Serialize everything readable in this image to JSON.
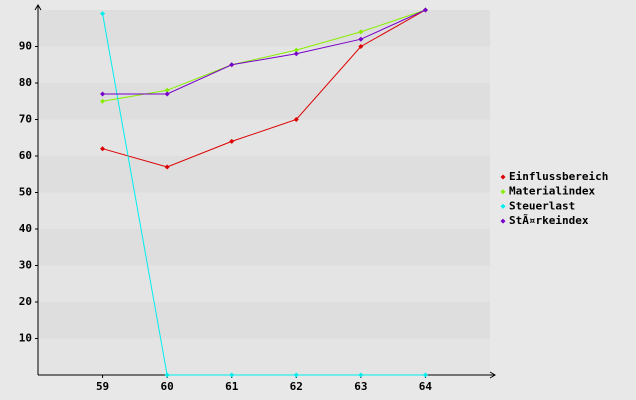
{
  "chart_data": {
    "type": "line",
    "x": [
      59,
      60,
      61,
      62,
      63,
      64
    ],
    "xlim": [
      58,
      65
    ],
    "xticks": [
      59,
      60,
      61,
      62,
      63,
      64
    ],
    "ylim": [
      0,
      100
    ],
    "yticks": [
      10,
      20,
      30,
      40,
      50,
      60,
      70,
      80,
      90
    ],
    "legend": "right",
    "series": [
      {
        "name": "Einflussbereich",
        "color": "#dd0000",
        "values": [
          62,
          57,
          64,
          70,
          90,
          100
        ]
      },
      {
        "name": "Materialindex",
        "color": "#88ee00",
        "values": [
          75,
          78,
          85,
          89,
          94,
          100
        ]
      },
      {
        "name": "Steuerlast",
        "color": "#00eeee",
        "values": [
          99,
          0,
          0,
          0,
          0,
          0
        ]
      },
      {
        "name": "StÃ¤rkeindex",
        "color": "#7700cc",
        "values": [
          77,
          77,
          85,
          88,
          92,
          100
        ]
      }
    ]
  }
}
